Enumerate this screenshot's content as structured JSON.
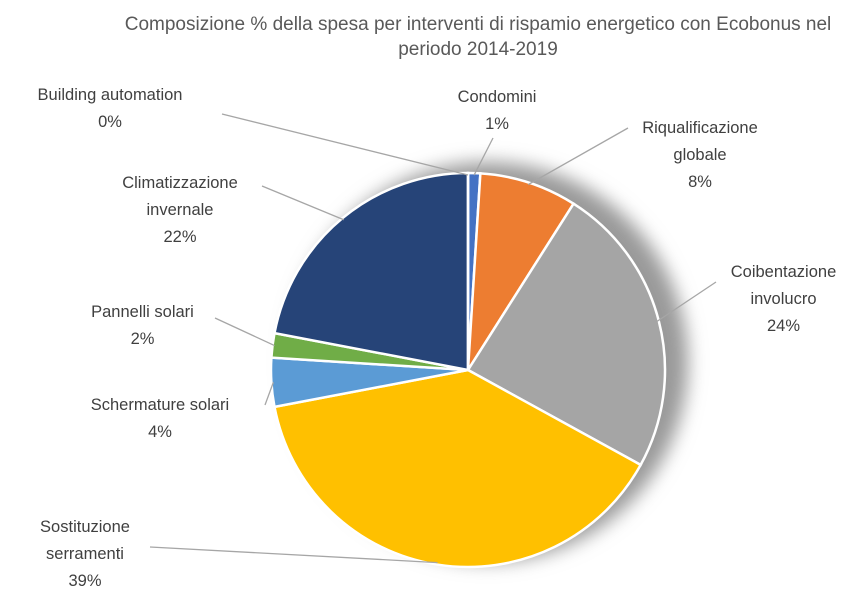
{
  "chart_data": {
    "type": "pie",
    "title": "Composizione % della spesa per interventi di rispamio energetico con Ecobonus nel periodo 2014-2019",
    "categories": [
      "Condomini",
      "Riqualificazione globale",
      "Coibentazione involucro",
      "Sostituzione serramenti",
      "Schermature solari",
      "Pannelli solari",
      "Climatizzazione invernale",
      "Building automation"
    ],
    "values": [
      1,
      8,
      24,
      39,
      4,
      2,
      22,
      0
    ],
    "value_labels": [
      "1%",
      "8%",
      "24%",
      "39%",
      "4%",
      "2%",
      "22%",
      "0%"
    ],
    "colors": [
      "#4472c4",
      "#ed7d31",
      "#a5a5a5",
      "#ffc000",
      "#5b9bd5",
      "#70ad47",
      "#264478",
      "#9e480e"
    ]
  }
}
